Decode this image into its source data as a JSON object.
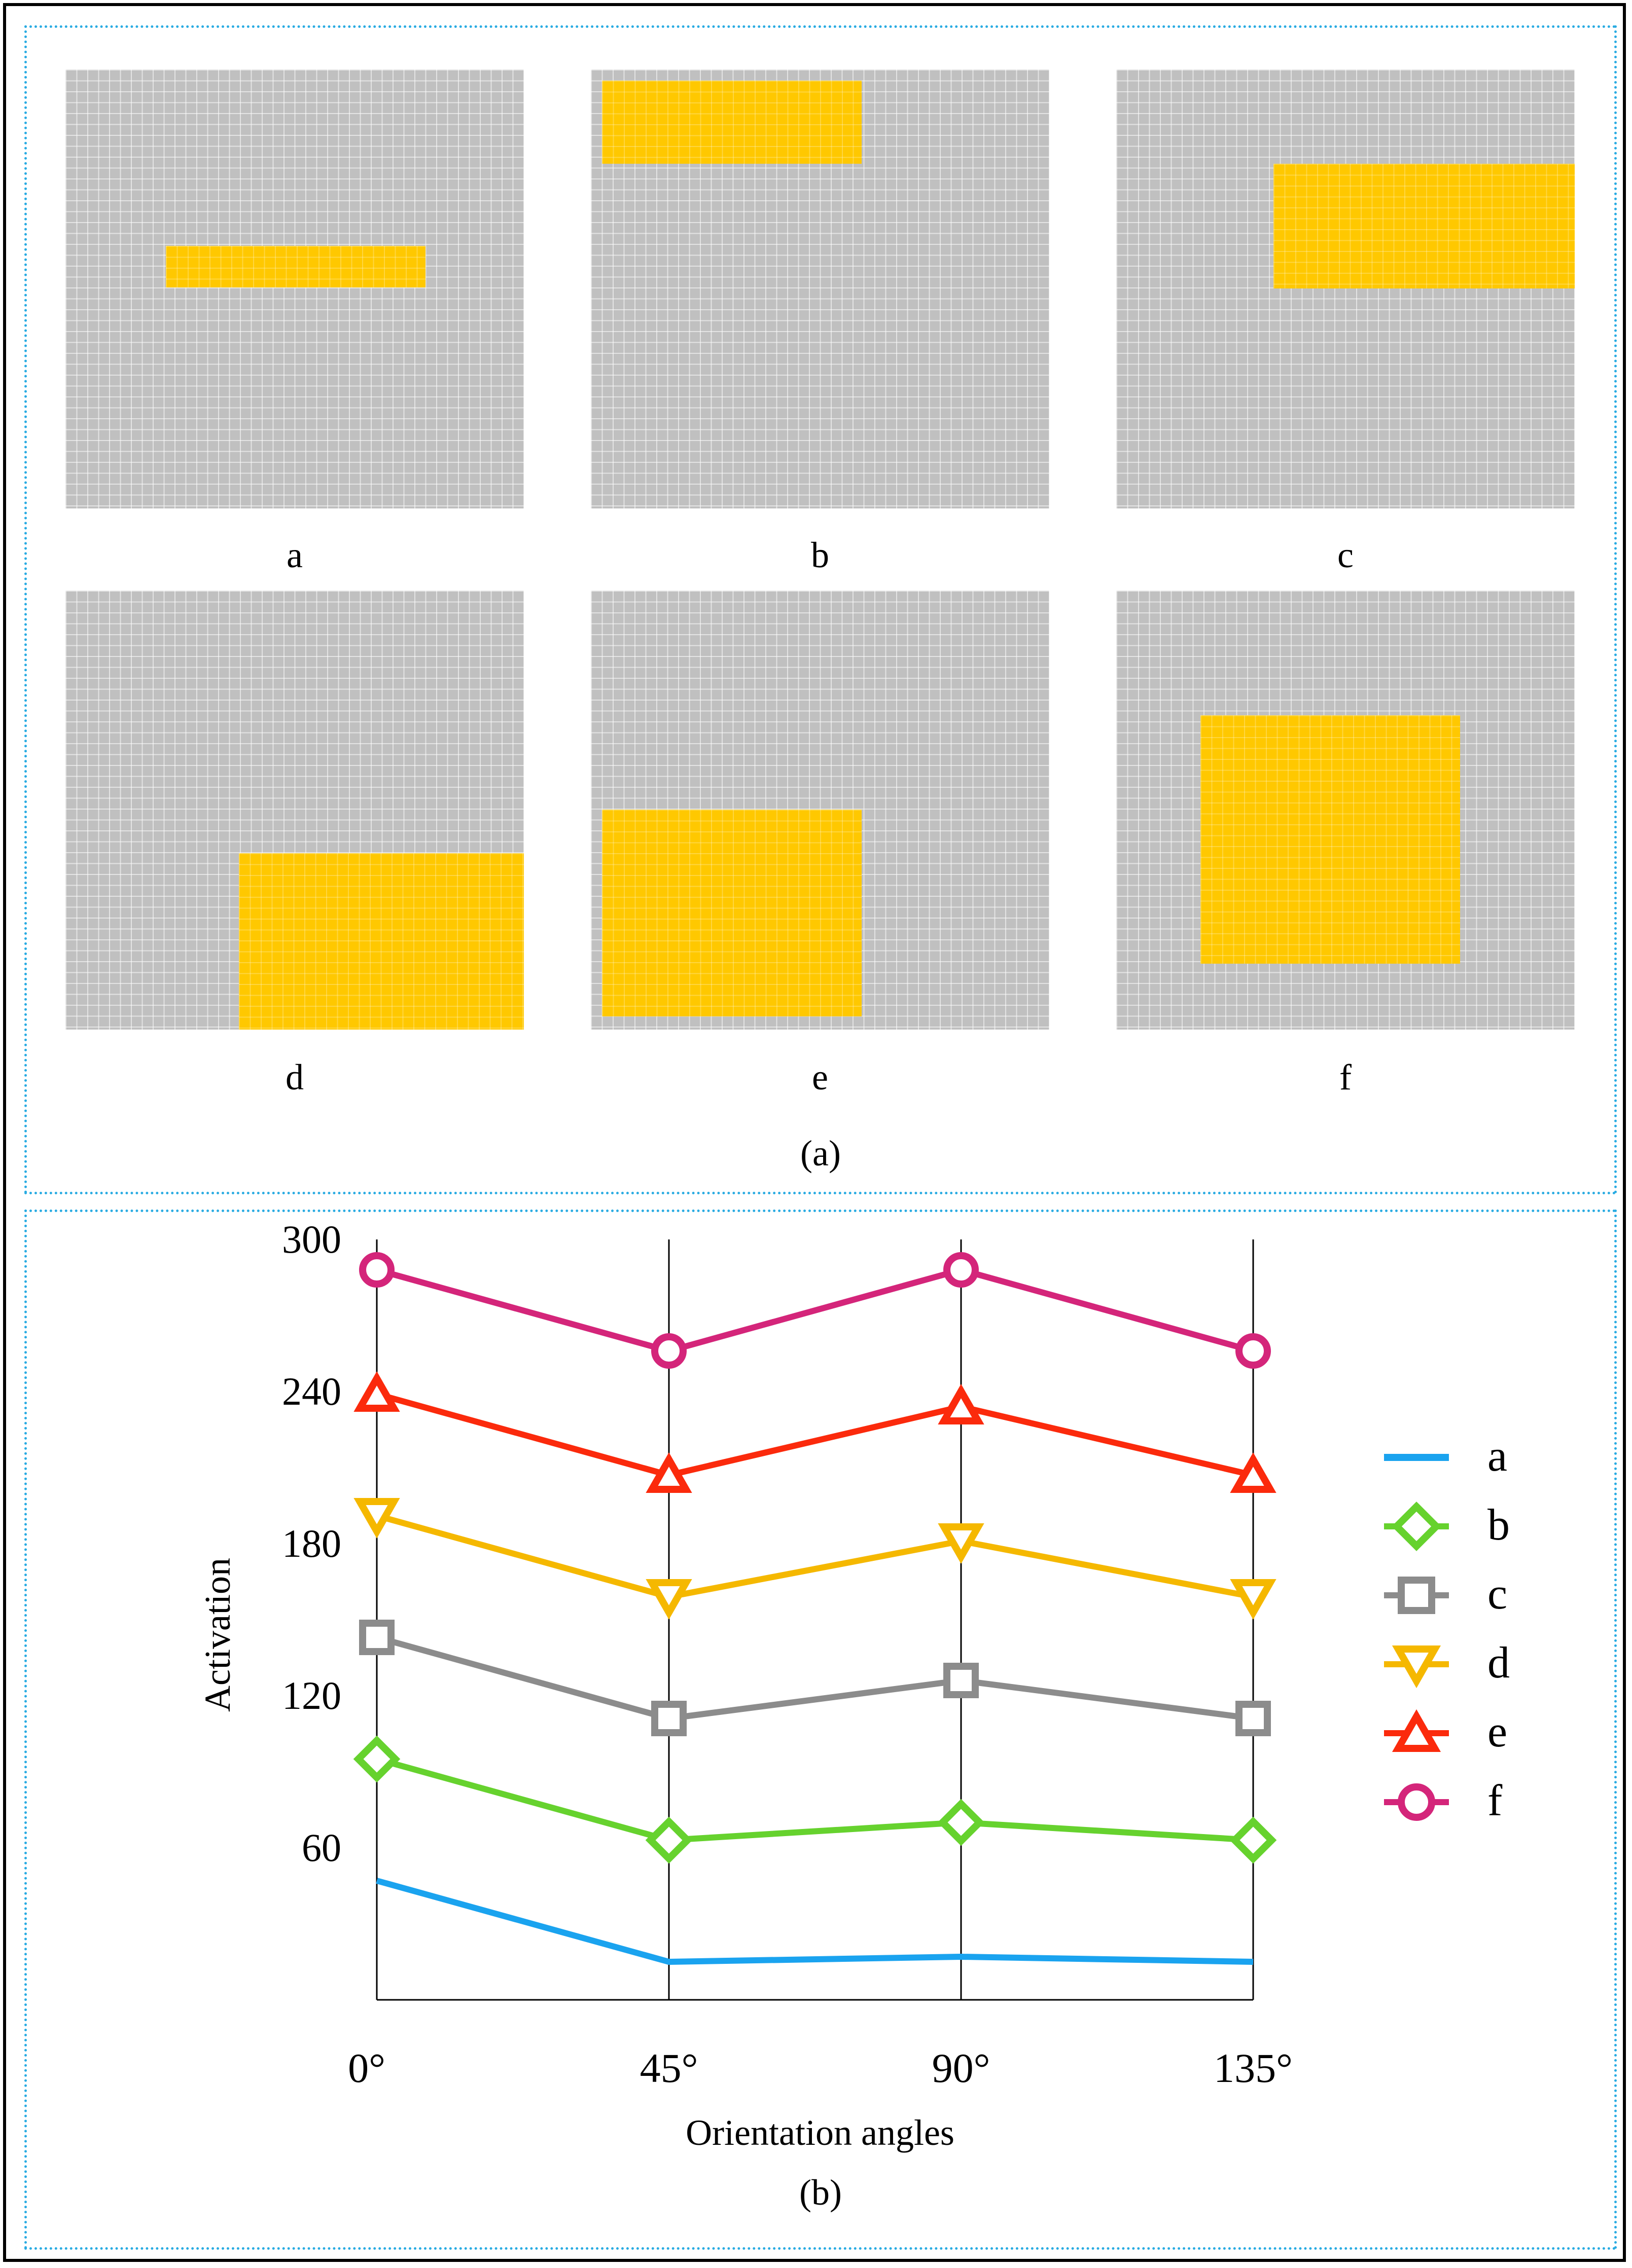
{
  "panel_a": {
    "caption": "(a)",
    "images": [
      {
        "label": "a"
      },
      {
        "label": "b"
      },
      {
        "label": "c"
      },
      {
        "label": "d"
      },
      {
        "label": "e"
      },
      {
        "label": "f"
      }
    ]
  },
  "panel_b": {
    "caption": "(b)"
  },
  "colors": {
    "grid_gray": "#c0c0c0",
    "highlight_yellow": "#ffc800",
    "panel_border": "#29abe2"
  },
  "chart_data": {
    "type": "line",
    "title": "",
    "xlabel": "Orientation angles",
    "ylabel": "Activation",
    "categories": [
      "0°",
      "45°",
      "90°",
      "135°"
    ],
    "yticks": [
      60,
      120,
      180,
      240,
      300
    ],
    "ylim": [
      0,
      300
    ],
    "grid": "vertical lines at each category",
    "legend_position": "right",
    "series": [
      {
        "name": "a",
        "color": "#1aa3ef",
        "marker": "none",
        "values": [
          47,
          15,
          17,
          15
        ]
      },
      {
        "name": "b",
        "color": "#66d22e",
        "marker": "diamond",
        "values": [
          95,
          63,
          70,
          63
        ]
      },
      {
        "name": "c",
        "color": "#8c8c8c",
        "marker": "square",
        "values": [
          143,
          111,
          126,
          111
        ]
      },
      {
        "name": "d",
        "color": "#f5b800",
        "marker": "triangle-down",
        "values": [
          191,
          159,
          181,
          159
        ]
      },
      {
        "name": "e",
        "color": "#fb2a0c",
        "marker": "triangle-up",
        "values": [
          239,
          207,
          234,
          207
        ]
      },
      {
        "name": "f",
        "color": "#d4257a",
        "marker": "circle",
        "values": [
          288,
          256,
          288,
          256
        ]
      }
    ]
  }
}
